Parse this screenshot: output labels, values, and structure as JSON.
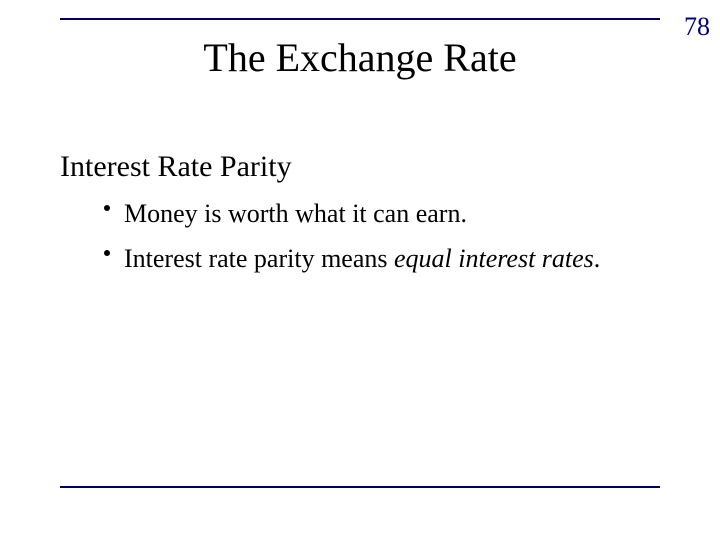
{
  "page_number": "78",
  "title": "The Exchange Rate",
  "subtitle": "Interest Rate Parity",
  "bullets": [
    {
      "text": "Money is worth what it can earn."
    },
    {
      "prefix": "Interest rate parity means ",
      "italic": "equal interest rates",
      "suffix": "."
    }
  ],
  "colors": {
    "rule": "#000060",
    "page_number": "#00007a",
    "text": "#000000",
    "background": "#ffffff"
  },
  "fontsize": {
    "title": 40,
    "subtitle": 30,
    "bullet": 26,
    "page_number": 26
  }
}
